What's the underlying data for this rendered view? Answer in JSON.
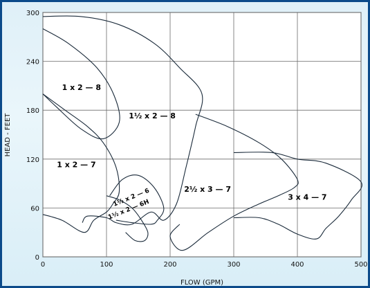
{
  "chart_data": {
    "type": "area",
    "title": "",
    "xlabel": "FLOW (GPM)",
    "ylabel": "HEAD - FEET",
    "xlim": [
      0,
      500
    ],
    "ylim": [
      0,
      300
    ],
    "xticks": [
      "0",
      "100",
      "200",
      "300",
      "400",
      "500"
    ],
    "yticks": [
      "0",
      "60",
      "120",
      "180",
      "240",
      "300"
    ],
    "grid": true,
    "colors": {
      "frame": "#0b4a8a",
      "background": "#e3f2f9",
      "plot": "#ffffff",
      "curves": "#1a2a3a"
    },
    "regions": [
      {
        "label": "1 x 2 — 8",
        "outline": [
          [
            0,
            280
          ],
          [
            40,
            262
          ],
          [
            85,
            232
          ],
          [
            112,
            198
          ],
          [
            120,
            165
          ],
          [
            95,
            145
          ],
          [
            60,
            157
          ],
          [
            20,
            185
          ],
          [
            0,
            200
          ]
        ]
      },
      {
        "label": "1 x 2 — 7",
        "outline": [
          [
            0,
            200
          ],
          [
            35,
            180
          ],
          [
            70,
            160
          ],
          [
            95,
            140
          ],
          [
            115,
            110
          ],
          [
            120,
            80
          ],
          [
            110,
            65
          ],
          [
            100,
            55
          ],
          [
            80,
            45
          ],
          [
            65,
            30
          ],
          [
            30,
            45
          ],
          [
            0,
            52
          ]
        ]
      },
      {
        "label": "1½ x 2 — 8",
        "outline": [
          [
            0,
            295
          ],
          [
            60,
            295
          ],
          [
            120,
            285
          ],
          [
            175,
            262
          ],
          [
            215,
            232
          ],
          [
            250,
            200
          ],
          [
            240,
            160
          ],
          [
            225,
            110
          ],
          [
            210,
            65
          ],
          [
            190,
            45
          ],
          [
            170,
            55
          ],
          [
            140,
            40
          ],
          [
            115,
            42
          ],
          [
            100,
            48
          ],
          [
            70,
            50
          ],
          [
            62,
            42
          ]
        ]
      },
      {
        "label": "1½ x 2 — 6",
        "outline": [
          [
            105,
            75
          ],
          [
            125,
            95
          ],
          [
            150,
            100
          ],
          [
            175,
            85
          ],
          [
            190,
            60
          ],
          [
            180,
            45
          ],
          [
            170,
            40
          ],
          [
            140,
            42
          ],
          [
            115,
            45
          ]
        ]
      },
      {
        "label": "1½ x 2 — 6H",
        "outline": [
          [
            100,
            75
          ],
          [
            120,
            70
          ],
          [
            140,
            60
          ],
          [
            155,
            45
          ],
          [
            165,
            30
          ],
          [
            160,
            20
          ],
          [
            145,
            20
          ],
          [
            130,
            30
          ]
        ]
      },
      {
        "label": "2½ x 3 — 7",
        "outline": [
          [
            240,
            175
          ],
          [
            290,
            160
          ],
          [
            340,
            140
          ],
          [
            375,
            120
          ],
          [
            400,
            95
          ],
          [
            395,
            85
          ],
          [
            370,
            75
          ],
          [
            340,
            65
          ],
          [
            300,
            50
          ],
          [
            260,
            30
          ],
          [
            220,
            8
          ],
          [
            200,
            25
          ],
          [
            215,
            40
          ]
        ]
      },
      {
        "label": "3 x 4 — 7",
        "outline": [
          [
            300,
            128
          ],
          [
            360,
            128
          ],
          [
            400,
            120
          ],
          [
            445,
            115
          ],
          [
            500,
            92
          ],
          [
            485,
            70
          ],
          [
            465,
            50
          ],
          [
            445,
            35
          ],
          [
            430,
            22
          ],
          [
            400,
            28
          ],
          [
            370,
            40
          ],
          [
            340,
            48
          ],
          [
            300,
            48
          ]
        ]
      }
    ],
    "labels": [
      {
        "text": "1 x 2 — 8",
        "x": 30,
        "y": 205
      },
      {
        "text": "1 x 2 — 7",
        "x": 22,
        "y": 110
      },
      {
        "text": "1½ x 2 — 8",
        "x": 135,
        "y": 170
      },
      {
        "text": "1½ x 2 — 6",
        "x": 112,
        "y": 62
      },
      {
        "text": "1½ x 2 — 6H",
        "x": 104,
        "y": 46
      },
      {
        "text": "2½ x 3 — 7",
        "x": 222,
        "y": 80
      },
      {
        "text": "3 x 4 — 7",
        "x": 385,
        "y": 70
      }
    ]
  }
}
